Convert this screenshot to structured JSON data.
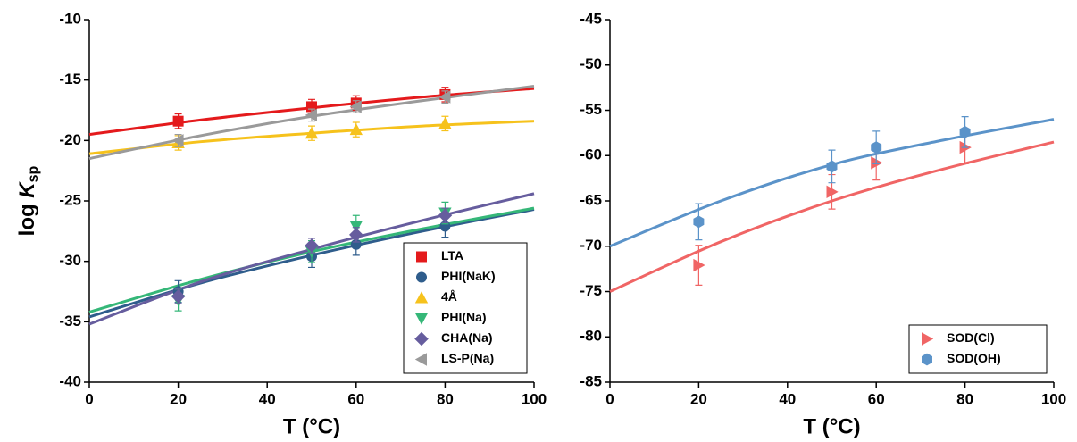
{
  "chart_data": [
    {
      "type": "scatter",
      "xlabel": "T (°C)",
      "ylabel_parts": [
        "log ",
        "K",
        "sp"
      ],
      "xlim": [
        0,
        100
      ],
      "xticks": [
        0,
        20,
        40,
        60,
        80,
        100
      ],
      "ylim": [
        -40,
        -10
      ],
      "yticks": [
        -40,
        -35,
        -30,
        -25,
        -20,
        -15,
        -10
      ],
      "legend": "lower right",
      "x": [
        20,
        50,
        60,
        80
      ],
      "fit_x": [
        0,
        25,
        50,
        75,
        100
      ],
      "series": [
        {
          "name": "LTA",
          "color": "#e41a1c",
          "marker": "square",
          "values": [
            -18.4,
            -17.2,
            -16.9,
            -16.2
          ],
          "errors": [
            0.6,
            0.6,
            0.6,
            0.6
          ],
          "fit": [
            -19.5,
            -18.3,
            -17.3,
            -16.4,
            -15.7
          ]
        },
        {
          "name": "PHI(NaK)",
          "color": "#2f5d8c",
          "marker": "circle",
          "values": [
            -32.5,
            -29.6,
            -28.6,
            -27.1
          ],
          "errors": [
            0.9,
            0.9,
            0.9,
            0.9
          ],
          "fit": [
            -34.6,
            -31.8,
            -29.5,
            -27.5,
            -25.7
          ]
        },
        {
          "name": "4Å",
          "color": "#f6c21c",
          "marker": "triangle-up",
          "values": [
            -20.2,
            -19.4,
            -19.1,
            -18.6
          ],
          "errors": [
            0.6,
            0.6,
            0.6,
            0.6
          ],
          "fit": [
            -21.1,
            -20.1,
            -19.4,
            -18.8,
            -18.4
          ]
        },
        {
          "name": "PHI(Na)",
          "color": "#35b778",
          "marker": "triangle-down",
          "values": [
            -33.2,
            -29.2,
            -27.1,
            -26.0
          ],
          "errors": [
            0.9,
            0.9,
            0.9,
            0.9
          ],
          "fit": [
            -34.2,
            -31.5,
            -29.2,
            -27.3,
            -25.6
          ]
        },
        {
          "name": "CHA(Na)",
          "color": "#665d9e",
          "marker": "diamond",
          "values": [
            -32.9,
            -28.7,
            -27.8,
            -26.2
          ],
          "errors": [
            0.6,
            0.6,
            0.6,
            0.6
          ],
          "fit": [
            -35.2,
            -31.7,
            -29.0,
            -26.6,
            -24.4
          ]
        },
        {
          "name": "LS-P(Na)",
          "color": "#9a9a9a",
          "marker": "triangle-left",
          "values": [
            -20.0,
            -17.9,
            -17.2,
            -16.4
          ],
          "errors": [
            0.5,
            0.5,
            0.5,
            0.5
          ],
          "fit": [
            -21.5,
            -19.6,
            -18.0,
            -16.7,
            -15.5
          ]
        }
      ]
    },
    {
      "type": "scatter",
      "xlabel": "T (°C)",
      "xlim": [
        0,
        100
      ],
      "xticks": [
        0,
        20,
        40,
        60,
        80,
        100
      ],
      "ylim": [
        -85,
        -45
      ],
      "yticks": [
        -85,
        -80,
        -75,
        -70,
        -65,
        -60,
        -55,
        -50,
        -45
      ],
      "legend": "lower right",
      "x": [
        20,
        50,
        60,
        80
      ],
      "fit_x": [
        0,
        25,
        50,
        75,
        100
      ],
      "series": [
        {
          "name": "SOD(Cl)",
          "color": "#f06565",
          "marker": "triangle-right",
          "values": [
            -72.1,
            -64.0,
            -60.8,
            -59.1
          ],
          "errors": [
            2.2,
            1.9,
            1.9,
            1.8
          ],
          "fit": [
            -75.0,
            -69.5,
            -65.0,
            -61.5,
            -58.5
          ]
        },
        {
          "name": "SOD(OH)",
          "color": "#5b93c9",
          "marker": "hexagon",
          "values": [
            -67.3,
            -61.2,
            -59.1,
            -57.4
          ],
          "errors": [
            2.0,
            1.8,
            1.8,
            1.7
          ],
          "fit": [
            -70.0,
            -65.0,
            -61.0,
            -58.3,
            -56.0
          ]
        }
      ]
    }
  ]
}
